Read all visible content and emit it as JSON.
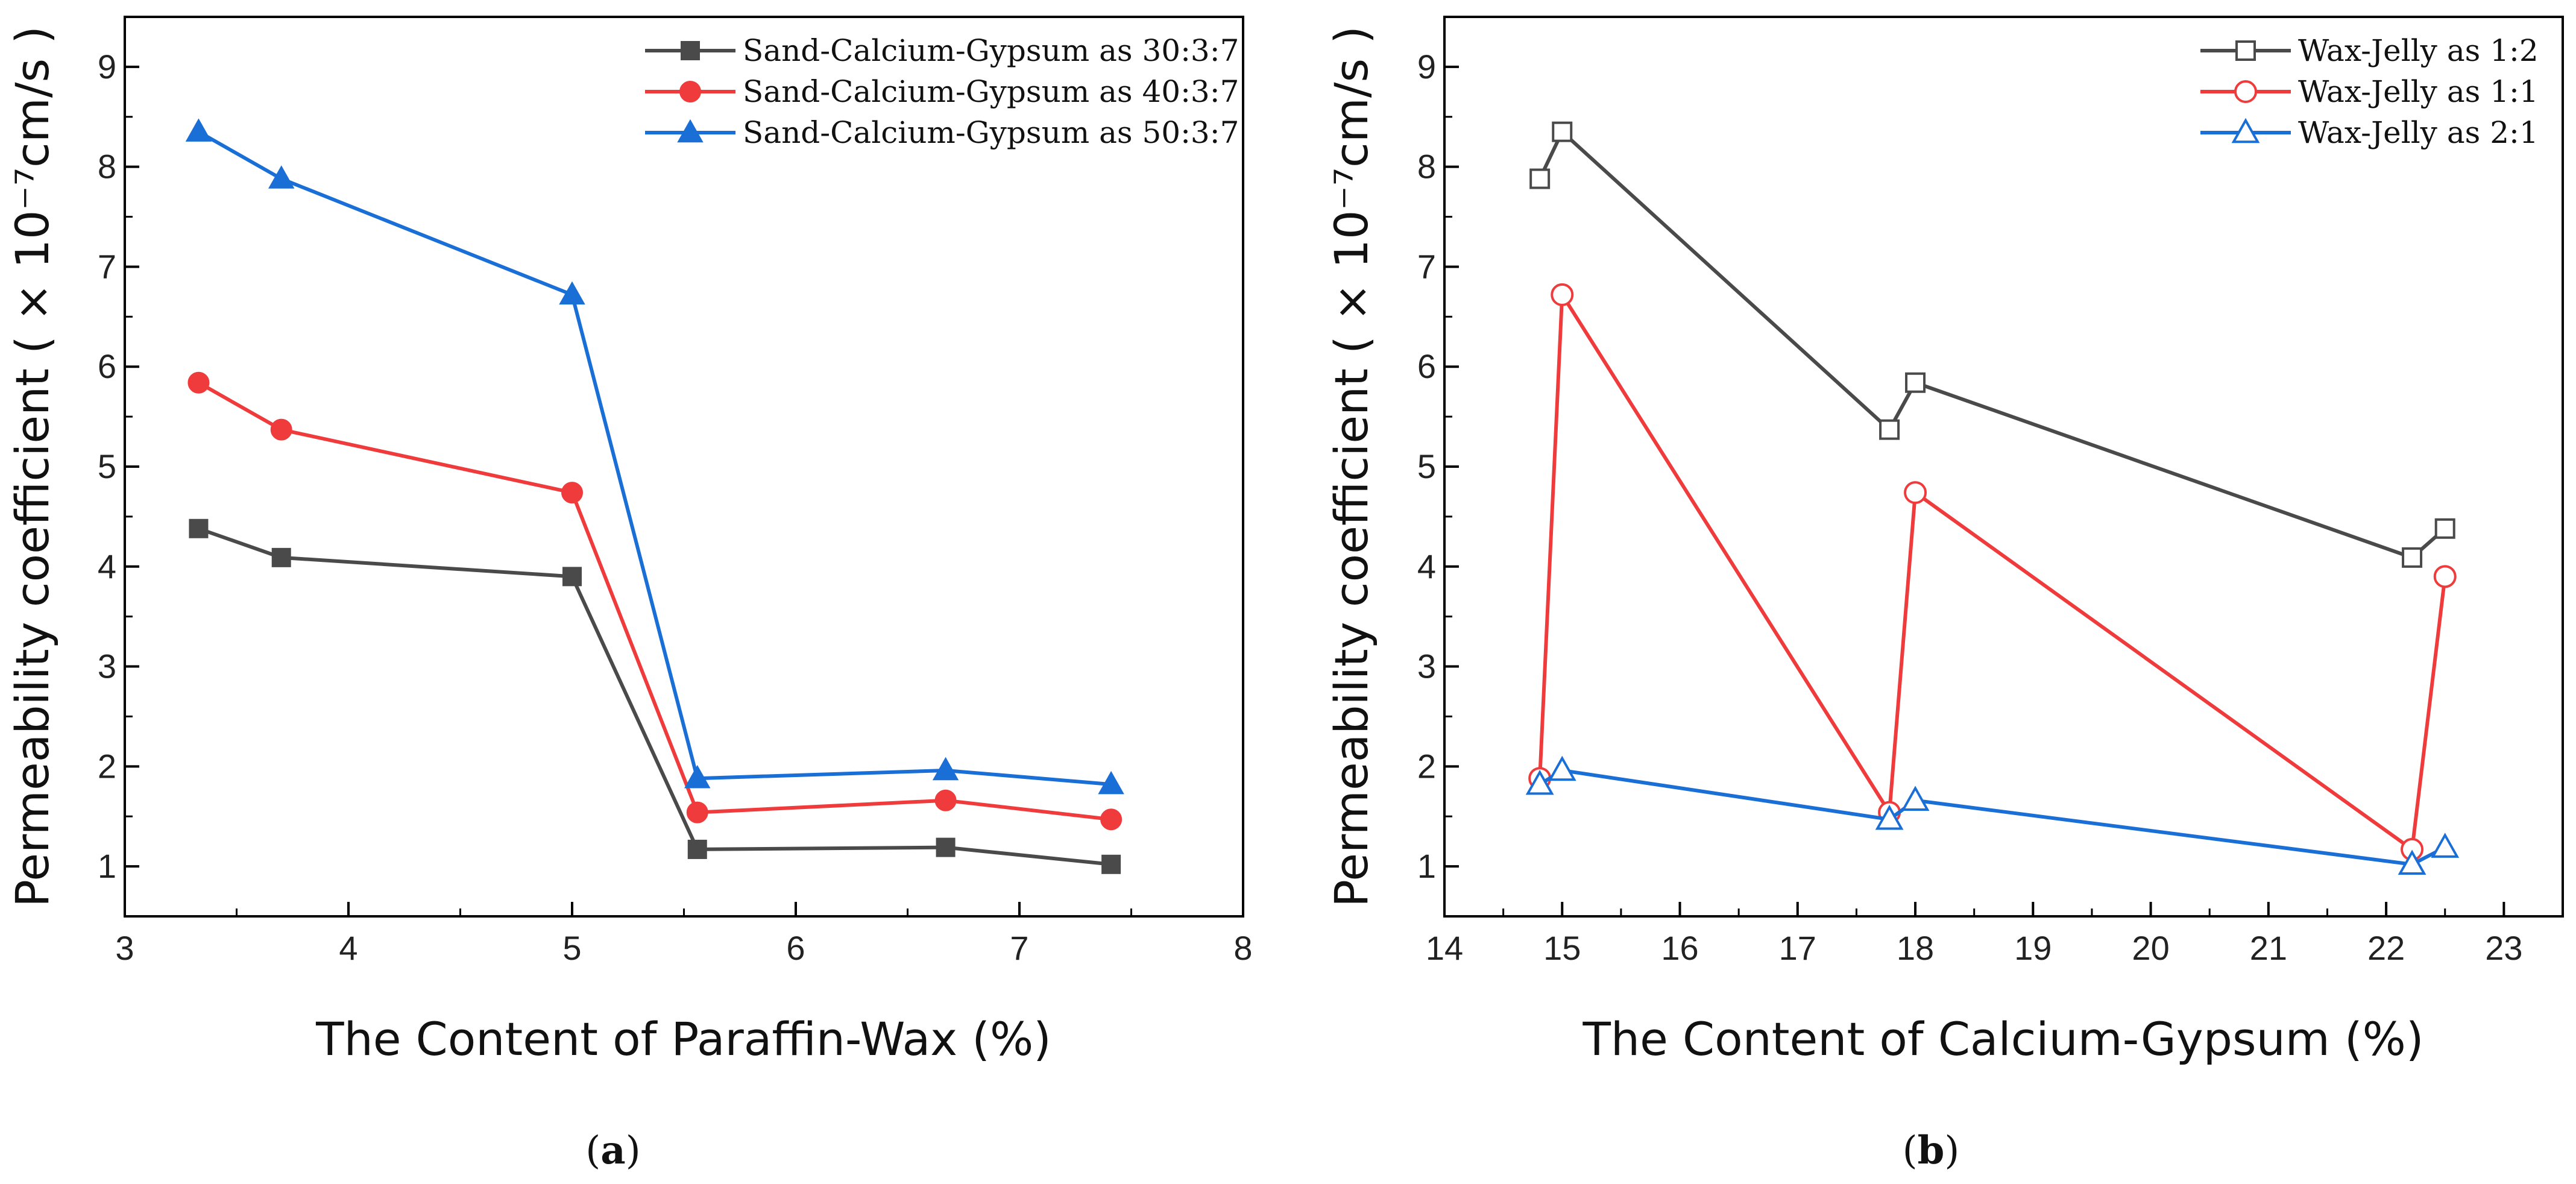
{
  "chart_data": [
    {
      "id": "a",
      "type": "line",
      "caption_open": "(",
      "caption_letter": "a",
      "caption_close": ")",
      "xlabel": "The Content of Paraffin-Wax (%)",
      "ylabel": "Permeability coefficient ( × 10⁻⁷cm/s )",
      "xlim": [
        3,
        8
      ],
      "ylim": [
        0.5,
        9.5
      ],
      "xticks": [
        "3",
        "4",
        "5",
        "6",
        "7",
        "8"
      ],
      "yticks": [
        "1",
        "2",
        "3",
        "4",
        "5",
        "6",
        "7",
        "8",
        "9"
      ],
      "legend_position": "top-right",
      "series": [
        {
          "name": "Sand-Calcium-Gypsum as 30:3:7",
          "color": "#4a4a4a",
          "marker": "square",
          "filled": true,
          "x": [
            3.33,
            3.7,
            5.0,
            5.56,
            6.67,
            7.41
          ],
          "y": [
            4.38,
            4.09,
            3.9,
            1.17,
            1.19,
            1.02
          ]
        },
        {
          "name": "Sand-Calcium-Gypsum as 40:3:7",
          "color": "#ef3b3b",
          "marker": "circle",
          "filled": true,
          "x": [
            3.33,
            3.7,
            5.0,
            5.56,
            6.67,
            7.41
          ],
          "y": [
            5.84,
            5.37,
            4.74,
            1.54,
            1.66,
            1.47
          ]
        },
        {
          "name": "Sand-Calcium-Gypsum as 50:3:7",
          "color": "#1a6fd6",
          "marker": "triangle",
          "filled": true,
          "x": [
            3.33,
            3.7,
            5.0,
            5.56,
            6.67,
            7.41
          ],
          "y": [
            8.35,
            7.88,
            6.72,
            1.88,
            1.96,
            1.82
          ]
        }
      ]
    },
    {
      "id": "b",
      "type": "line",
      "caption_open": "(",
      "caption_letter": "b",
      "caption_close": ")",
      "xlabel": "The Content of Calcium-Gypsum (%)",
      "ylabel": "Permeability coefficient ( × 10⁻⁷cm/s )",
      "xlim": [
        14,
        23.5
      ],
      "ylim": [
        0.5,
        9.5
      ],
      "xticks": [
        "14",
        "15",
        "16",
        "17",
        "18",
        "19",
        "20",
        "21",
        "22",
        "23"
      ],
      "yticks": [
        "1",
        "2",
        "3",
        "4",
        "5",
        "6",
        "7",
        "8",
        "9"
      ],
      "legend_position": "top-right",
      "series": [
        {
          "name": "Wax-Jelly as 1:2",
          "color": "#4a4a4a",
          "marker": "square",
          "filled": false,
          "x": [
            14.81,
            15.0,
            17.78,
            18.0,
            22.22,
            22.5
          ],
          "y": [
            7.88,
            8.35,
            5.37,
            5.84,
            4.09,
            4.38
          ]
        },
        {
          "name": "Wax-Jelly as 1:1",
          "color": "#ef3b3b",
          "marker": "circle",
          "filled": false,
          "x": [
            14.81,
            15.0,
            17.78,
            18.0,
            22.22,
            22.5
          ],
          "y": [
            1.88,
            6.72,
            1.54,
            4.74,
            1.17,
            3.9
          ]
        },
        {
          "name": "Wax-Jelly as 2:1",
          "color": "#1a6fd6",
          "marker": "triangle",
          "filled": false,
          "x": [
            14.81,
            15.0,
            17.78,
            18.0,
            22.22,
            22.5
          ],
          "y": [
            1.82,
            1.96,
            1.47,
            1.66,
            1.02,
            1.19
          ]
        }
      ]
    }
  ]
}
